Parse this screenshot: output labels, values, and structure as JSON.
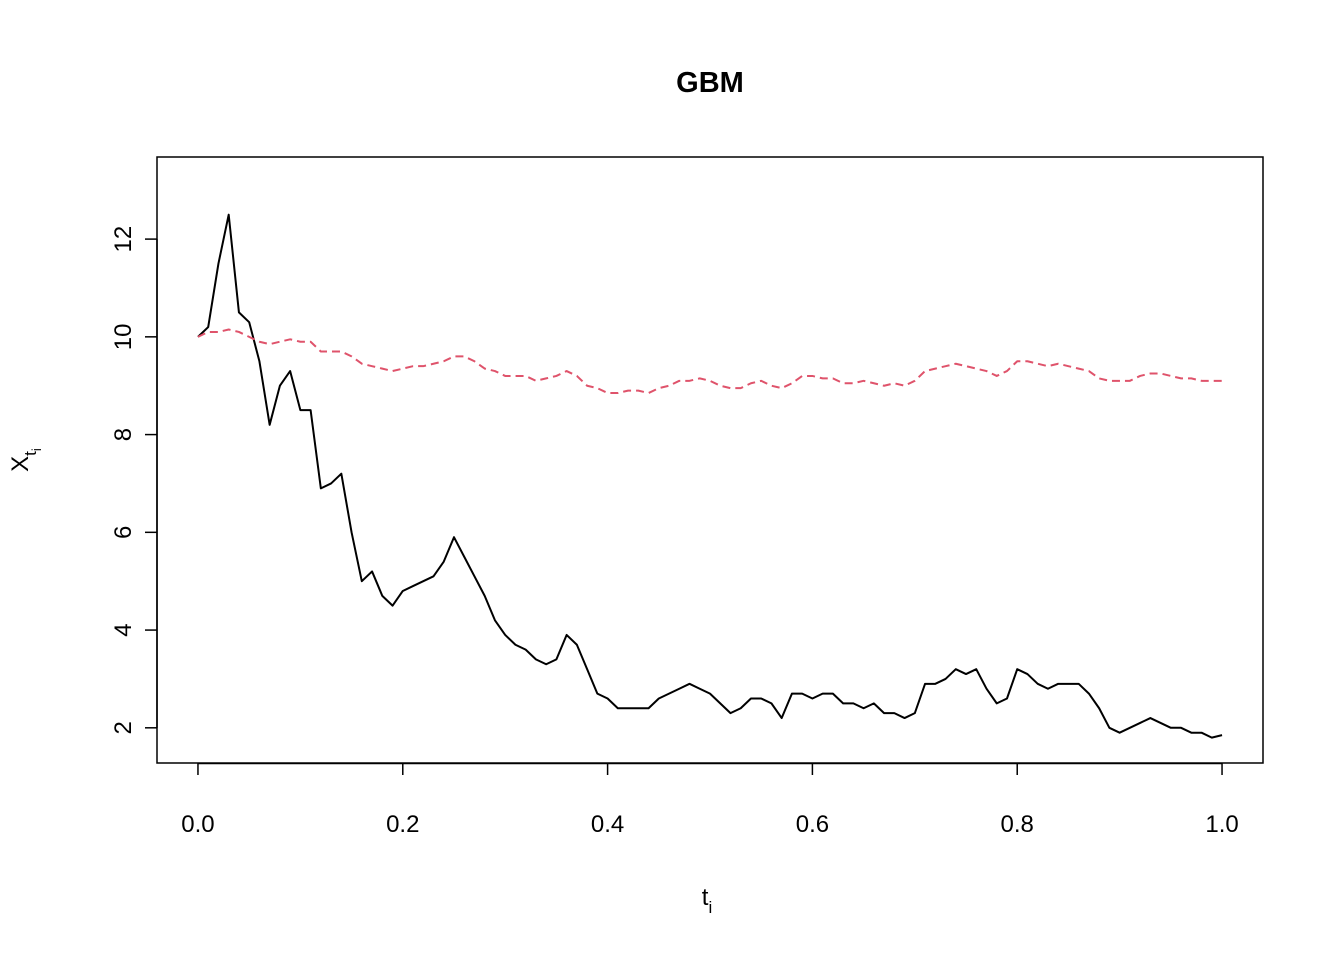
{
  "chart_data": {
    "type": "line",
    "title": "GBM",
    "xlabel": {
      "main": "t",
      "sub": "i"
    },
    "ylabel": {
      "main": "X",
      "sub": "t",
      "subsub": "i"
    },
    "xlim": [
      -0.04,
      1.04
    ],
    "ylim": [
      1.28,
      13.68
    ],
    "xticks": [
      {
        "value": 0,
        "label": "0.0"
      },
      0.2,
      0.4,
      0.6,
      0.8,
      {
        "value": 1,
        "label": "1.0"
      }
    ],
    "yticks": [
      2,
      4,
      6,
      8,
      10,
      12
    ],
    "x": [
      0,
      0.01,
      0.02,
      0.03,
      0.04,
      0.05,
      0.06,
      0.07,
      0.08,
      0.09,
      0.1,
      0.11,
      0.12,
      0.13,
      0.14,
      0.15,
      0.16,
      0.17,
      0.18,
      0.19,
      0.2,
      0.21,
      0.22,
      0.23,
      0.24,
      0.25,
      0.26,
      0.27,
      0.28,
      0.29,
      0.3,
      0.31,
      0.32,
      0.33,
      0.34,
      0.35,
      0.36,
      0.37,
      0.38,
      0.39,
      0.4,
      0.41,
      0.42,
      0.43,
      0.44,
      0.45,
      0.46,
      0.47,
      0.48,
      0.49,
      0.5,
      0.51,
      0.52,
      0.53,
      0.54,
      0.55,
      0.56,
      0.57,
      0.58,
      0.59,
      0.6,
      0.61,
      0.62,
      0.63,
      0.64,
      0.65,
      0.66,
      0.67,
      0.68,
      0.69,
      0.7,
      0.71,
      0.72,
      0.73,
      0.74,
      0.75,
      0.76,
      0.77,
      0.78,
      0.79,
      0.8,
      0.81,
      0.82,
      0.83,
      0.84,
      0.85,
      0.86,
      0.87,
      0.88,
      0.89,
      0.9,
      0.91,
      0.92,
      0.93,
      0.94,
      0.95,
      0.96,
      0.97,
      0.98,
      0.99,
      1
    ],
    "series": [
      {
        "color": "#000000",
        "dash": false,
        "values": [
          10.0,
          10.2,
          11.5,
          12.5,
          10.5,
          10.3,
          9.5,
          8.2,
          9.0,
          9.3,
          8.5,
          8.5,
          6.9,
          7.0,
          7.2,
          6.0,
          5.0,
          5.2,
          4.7,
          4.5,
          4.8,
          4.9,
          5.0,
          5.1,
          5.4,
          5.9,
          5.5,
          5.1,
          4.7,
          4.2,
          3.9,
          3.7,
          3.6,
          3.4,
          3.3,
          3.4,
          3.9,
          3.7,
          3.2,
          2.7,
          2.6,
          2.4,
          2.4,
          2.4,
          2.4,
          2.6,
          2.7,
          2.8,
          2.9,
          2.8,
          2.7,
          2.5,
          2.3,
          2.4,
          2.6,
          2.6,
          2.5,
          2.2,
          2.7,
          2.7,
          2.6,
          2.7,
          2.7,
          2.5,
          2.5,
          2.4,
          2.5,
          2.3,
          2.3,
          2.2,
          2.3,
          2.9,
          2.9,
          3.0,
          3.2,
          3.1,
          3.2,
          2.8,
          2.5,
          2.6,
          3.2,
          3.1,
          2.9,
          2.8,
          2.9,
          2.9,
          2.9,
          2.7,
          2.4,
          2.0,
          1.9,
          2.0,
          2.1,
          2.2,
          2.1,
          2.0,
          2.0,
          1.9,
          1.9,
          1.8,
          1.85
        ]
      },
      {
        "color": "#DF536B",
        "dash": true,
        "values": [
          10.0,
          10.1,
          10.1,
          10.15,
          10.1,
          10.0,
          9.9,
          9.85,
          9.9,
          9.95,
          9.9,
          9.9,
          9.7,
          9.7,
          9.7,
          9.6,
          9.45,
          9.4,
          9.35,
          9.3,
          9.35,
          9.4,
          9.4,
          9.45,
          9.5,
          9.6,
          9.6,
          9.5,
          9.35,
          9.3,
          9.2,
          9.2,
          9.2,
          9.1,
          9.15,
          9.2,
          9.3,
          9.2,
          9.0,
          8.95,
          8.85,
          8.85,
          8.9,
          8.9,
          8.85,
          8.95,
          9.0,
          9.1,
          9.1,
          9.15,
          9.1,
          9.0,
          8.95,
          8.95,
          9.05,
          9.1,
          9.0,
          8.95,
          9.05,
          9.2,
          9.2,
          9.15,
          9.15,
          9.05,
          9.05,
          9.1,
          9.05,
          9.0,
          9.05,
          9.0,
          9.1,
          9.3,
          9.35,
          9.4,
          9.45,
          9.4,
          9.35,
          9.3,
          9.2,
          9.3,
          9.5,
          9.5,
          9.45,
          9.4,
          9.45,
          9.4,
          9.35,
          9.3,
          9.15,
          9.1,
          9.1,
          9.1,
          9.2,
          9.25,
          9.25,
          9.2,
          9.15,
          9.15,
          9.1,
          9.1,
          9.1
        ]
      }
    ]
  }
}
